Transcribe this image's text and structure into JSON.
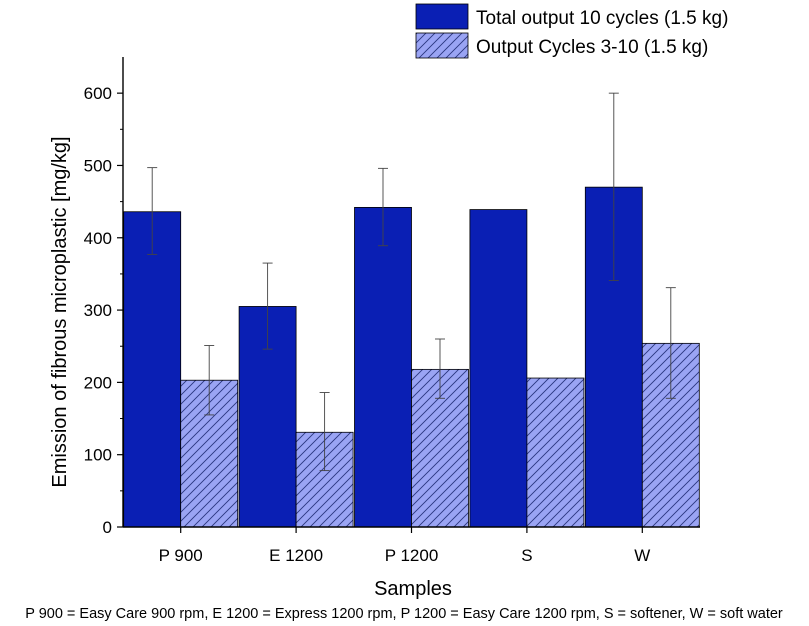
{
  "chart_data": {
    "type": "bar",
    "title": "",
    "xlabel": "Samples",
    "ylabel": "Emission of fibrous microplastic [mg/kg]",
    "ylim": [
      0,
      650
    ],
    "yticks": [
      0,
      100,
      200,
      300,
      400,
      500,
      600
    ],
    "categories": [
      "P 900",
      "E 1200",
      "P 1200",
      "S",
      "W"
    ],
    "series": [
      {
        "name": "Total output 10 cycles (1.5 kg)",
        "color": "#0a1fb4",
        "pattern": "solid",
        "values": [
          436,
          305,
          442,
          439,
          470
        ],
        "error": [
          [
            377,
            497
          ],
          [
            246,
            365
          ],
          [
            389,
            496
          ],
          null,
          [
            341,
            600
          ]
        ]
      },
      {
        "name": "Output Cycles 3-10 (1.5 kg)",
        "color": "#9aa4f4",
        "pattern": "hatch",
        "values": [
          203,
          131,
          218,
          206,
          254
        ],
        "error": [
          [
            155,
            251
          ],
          [
            78,
            186
          ],
          [
            178,
            260
          ],
          null,
          [
            178,
            331
          ]
        ]
      }
    ],
    "legend_position": "top-right",
    "grid": false,
    "footnote": "P 900 = Easy Care 900 rpm, E 1200 = Express 1200 rpm, P 1200 = Easy Care 1200 rpm, S = softener, W = soft water"
  }
}
